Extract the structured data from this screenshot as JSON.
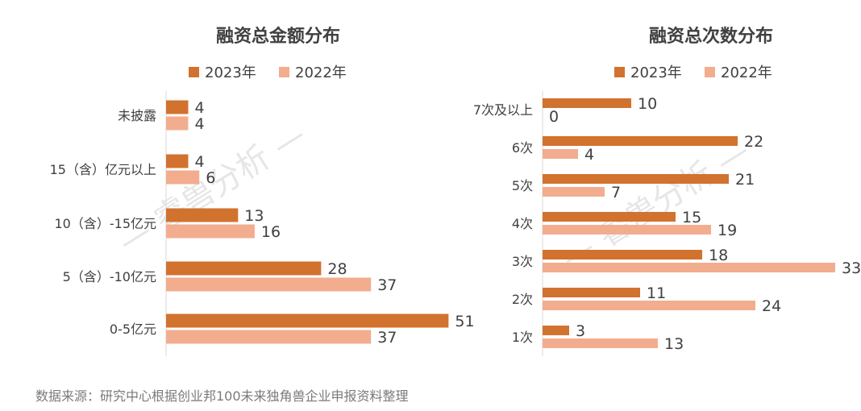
{
  "source_note": "数据来源：研究中心根据创业邦100未来独角兽企业申报资料整理",
  "watermark": "睿兽分析",
  "colors": {
    "series_2023": "#d2722f",
    "series_2022": "#f2ad8f",
    "axis": "#d9d9d9",
    "text": "#404040",
    "watermark": "#e6e6e6"
  },
  "chart_data": [
    {
      "type": "bar",
      "orientation": "horizontal",
      "title": "融资总金额分布",
      "categories": [
        "未披露",
        "15（含）亿元以上",
        "10（含）-15亿元",
        "5（含）-10亿元",
        "0-5亿元"
      ],
      "series": [
        {
          "name": "2023年",
          "values": [
            4,
            4,
            13,
            28,
            51
          ]
        },
        {
          "name": "2022年",
          "values": [
            4,
            6,
            16,
            37,
            37
          ]
        }
      ],
      "xlim": [
        0,
        55
      ],
      "legend": "top"
    },
    {
      "type": "bar",
      "orientation": "horizontal",
      "title": "融资总次数分布",
      "categories": [
        "7次及以上",
        "6次",
        "5次",
        "4次",
        "3次",
        "2次",
        "1次"
      ],
      "series": [
        {
          "name": "2023年",
          "values": [
            10,
            22,
            21,
            15,
            18,
            11,
            3
          ]
        },
        {
          "name": "2022年",
          "values": [
            0,
            4,
            7,
            19,
            33,
            24,
            13
          ]
        }
      ],
      "xlim": [
        0,
        33
      ],
      "legend": "top"
    }
  ]
}
